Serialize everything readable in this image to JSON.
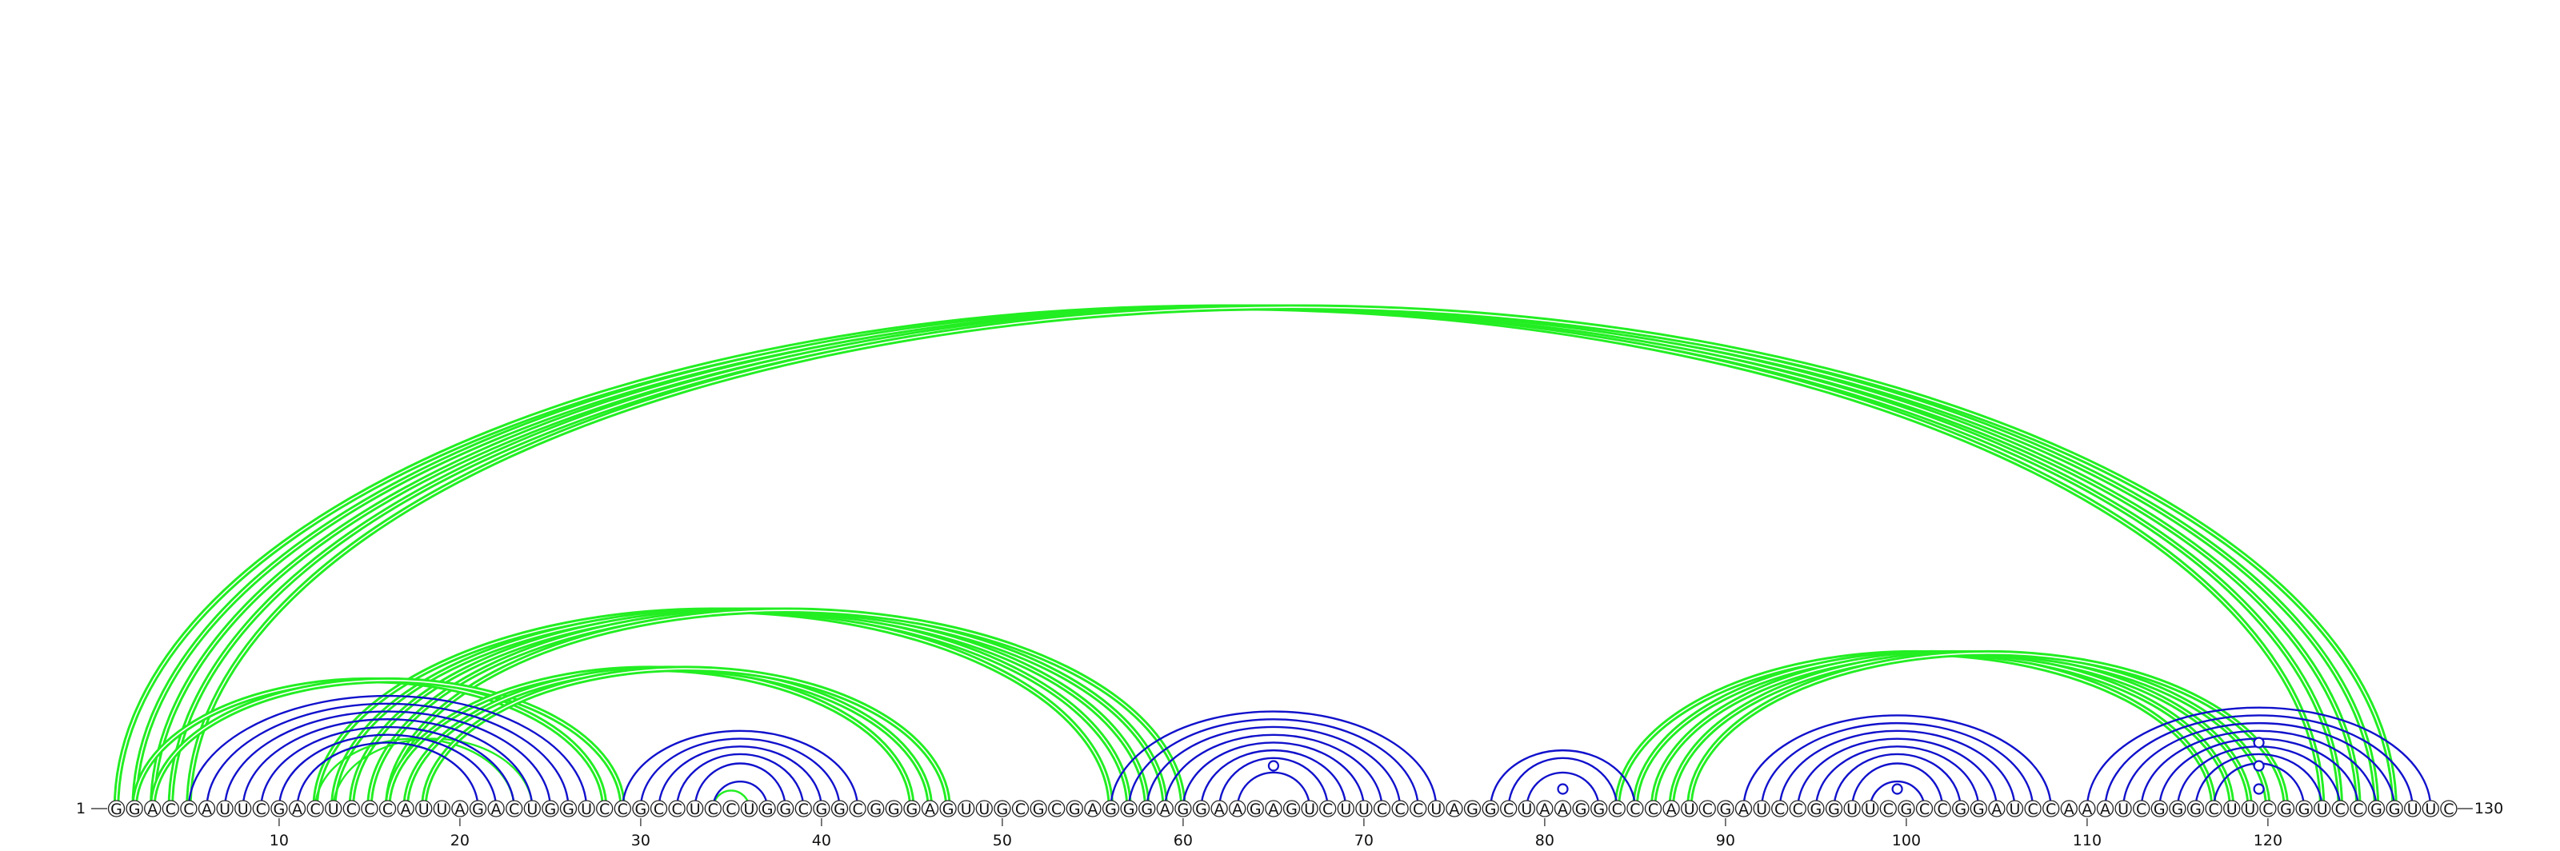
{
  "chart_data": {
    "type": "arc-diagram",
    "sequence": "GGACCAUUCGACUCCCAUUAGACUGGUCCGCCUCCUGGCGGCGGGAGUUGCGCGAGGGAGGAAGAGUCUUCCCUAGGCUAAGGCCCAUCGAUCCGGUUCGCCGGAUCCAAAUCGGGCUUCGGUCCGGUUC",
    "start_label": "1",
    "end_label": "130",
    "tick_positions": [
      10,
      20,
      30,
      40,
      50,
      60,
      70,
      80,
      90,
      100,
      110,
      120
    ],
    "colors": {
      "green": "#22ee22",
      "blue": "#1111cc"
    },
    "arc_groups": [
      {
        "color": "green",
        "weight": "double",
        "pairs": [
          [
            1,
            123
          ],
          [
            2,
            124
          ],
          [
            3,
            125
          ],
          [
            4,
            126
          ],
          [
            5,
            127
          ]
        ]
      },
      {
        "color": "green",
        "weight": "double",
        "pairs": [
          [
            12,
            56
          ],
          [
            13,
            57
          ],
          [
            14,
            58
          ],
          [
            15,
            59
          ],
          [
            16,
            60
          ]
        ]
      },
      {
        "color": "green",
        "weight": "double",
        "pairs": [
          [
            2,
            28
          ],
          [
            3,
            29
          ]
        ]
      },
      {
        "color": "green",
        "weight": "single",
        "pairs": [
          [
            12,
            23
          ],
          [
            13,
            24
          ]
        ]
      },
      {
        "color": "green",
        "weight": "double",
        "pairs": [
          [
            16,
            45
          ],
          [
            17,
            46
          ],
          [
            18,
            47
          ]
        ]
      },
      {
        "color": "green",
        "weight": "single",
        "pairs": [
          [
            34,
            36
          ]
        ]
      },
      {
        "color": "green",
        "weight": "double",
        "pairs": [
          [
            84,
            117
          ],
          [
            85,
            118
          ],
          [
            86,
            119
          ],
          [
            87,
            120
          ],
          [
            88,
            121
          ]
        ]
      },
      {
        "color": "blue",
        "weight": "single",
        "pairs": [
          [
            5,
            27
          ],
          [
            6,
            26
          ],
          [
            7,
            25
          ],
          [
            8,
            24
          ],
          [
            9,
            23
          ],
          [
            10,
            22
          ],
          [
            11,
            21
          ]
        ]
      },
      {
        "color": "blue",
        "weight": "single",
        "pairs": [
          [
            29,
            42
          ],
          [
            30,
            41
          ],
          [
            31,
            40
          ],
          [
            32,
            39
          ],
          [
            33,
            38
          ],
          [
            34,
            37
          ]
        ]
      },
      {
        "color": "blue",
        "weight": "single",
        "pairs": [
          [
            56,
            74
          ],
          [
            57,
            73
          ],
          [
            58,
            72
          ],
          [
            59,
            71
          ],
          [
            60,
            70
          ],
          [
            61,
            69
          ],
          [
            62,
            68
          ],
          [
            63,
            67
          ]
        ]
      },
      {
        "color": "blue",
        "weight": "single",
        "pairs": [
          [
            77,
            85
          ],
          [
            78,
            84
          ],
          [
            79,
            83
          ]
        ]
      },
      {
        "color": "blue",
        "weight": "single",
        "pairs": [
          [
            91,
            108
          ],
          [
            92,
            107
          ],
          [
            93,
            106
          ],
          [
            94,
            105
          ],
          [
            95,
            104
          ],
          [
            96,
            103
          ],
          [
            97,
            102
          ],
          [
            98,
            101
          ]
        ]
      },
      {
        "color": "blue",
        "weight": "single",
        "pairs": [
          [
            110,
            129
          ],
          [
            111,
            128
          ],
          [
            112,
            127
          ],
          [
            113,
            126
          ],
          [
            114,
            125
          ],
          [
            115,
            124
          ],
          [
            116,
            123
          ],
          [
            117,
            122
          ]
        ]
      }
    ],
    "markers": [
      {
        "pos": 35.0,
        "level": 0,
        "color": "green",
        "filled": true
      },
      {
        "pos": 65.0,
        "level": 3,
        "color": "blue",
        "filled": false
      },
      {
        "pos": 81.0,
        "level": 1,
        "color": "blue",
        "filled": false
      },
      {
        "pos": 99.5,
        "level": 1,
        "color": "blue",
        "filled": false
      },
      {
        "pos": 119.5,
        "level": 1,
        "color": "blue",
        "filled": false
      },
      {
        "pos": 119.5,
        "level": 3,
        "color": "blue",
        "filled": false
      },
      {
        "pos": 119.5,
        "level": 5,
        "color": "blue",
        "filled": false
      }
    ]
  }
}
